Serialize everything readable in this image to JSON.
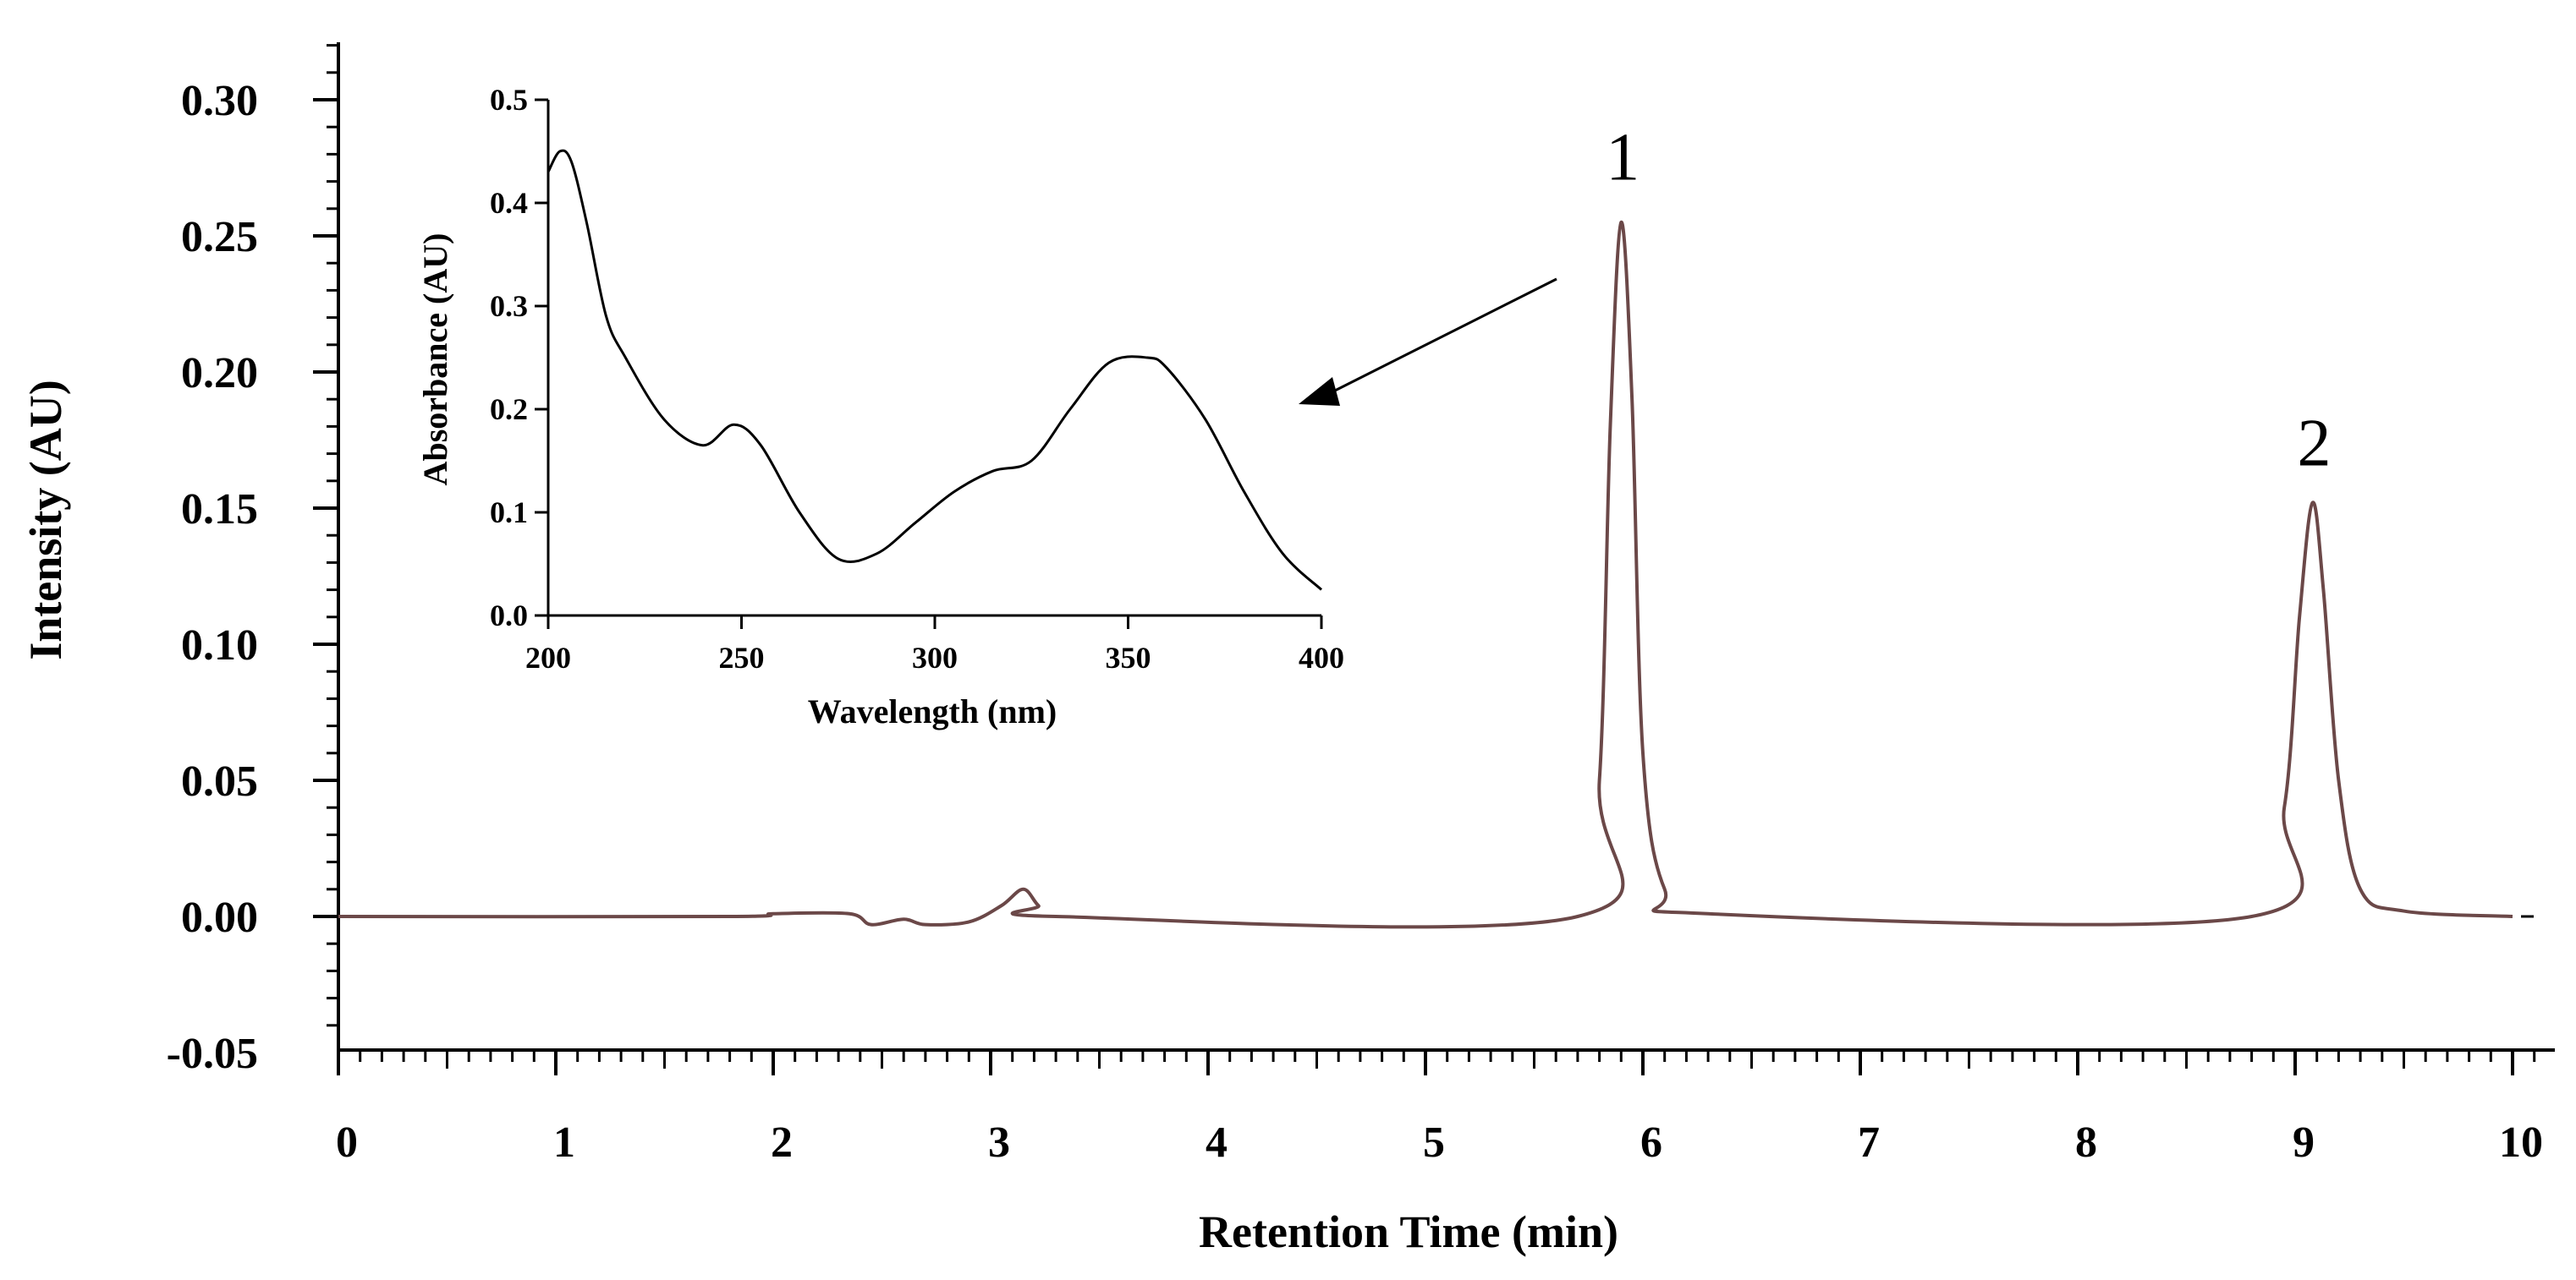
{
  "chart_data": [
    {
      "type": "line",
      "name": "chromatogram",
      "xlabel": "Retention Time (min)",
      "ylabel": "Intensity (AU)",
      "xlim": [
        0,
        10.2
      ],
      "ylim": [
        -0.05,
        0.32
      ],
      "xticks": [
        "0",
        "1",
        "2",
        "3",
        "4",
        "5",
        "6",
        "7",
        "8",
        "9",
        "10"
      ],
      "yticks": [
        "0.30",
        "0.25",
        "0.20",
        "0.15",
        "0.10",
        "0.05",
        "0.00",
        "-0.05"
      ],
      "series": [
        {
          "name": "Intensity",
          "color": "#6b4848",
          "x": [
            0,
            1.8,
            2.0,
            2.35,
            2.45,
            2.6,
            2.7,
            2.9,
            3.05,
            3.15,
            3.22,
            3.3,
            5.7,
            5.8,
            5.85,
            5.9,
            5.95,
            6.0,
            6.1,
            6.3,
            8.8,
            8.95,
            9.02,
            9.08,
            9.13,
            9.2,
            9.3,
            9.5,
            10.0
          ],
          "y": [
            0,
            0,
            0.001,
            0.001,
            -0.003,
            -0.001,
            -0.003,
            -0.002,
            0.004,
            0.01,
            0.004,
            0,
            0,
            0.05,
            0.18,
            0.255,
            0.19,
            0.06,
            0.01,
            0.001,
            0,
            0.04,
            0.11,
            0.152,
            0.12,
            0.05,
            0.01,
            0.002,
            0
          ]
        }
      ],
      "annotations": [
        {
          "text": "1",
          "x": 5.9,
          "y": 0.28
        },
        {
          "text": "2",
          "x": 9.08,
          "y": 0.175
        }
      ]
    },
    {
      "type": "line",
      "name": "inset-uv-spectrum",
      "xlabel": "Wavelength (nm)",
      "ylabel": "Absorbance (AU)",
      "xlim": [
        200,
        400
      ],
      "ylim": [
        0,
        0.5
      ],
      "xticks": [
        "200",
        "250",
        "300",
        "350",
        "400"
      ],
      "yticks": [
        "0.5",
        "0.4",
        "0.3",
        "0.2",
        "0.1",
        "0.0"
      ],
      "series": [
        {
          "name": "Absorbance",
          "color": "#000000",
          "x": [
            200,
            203,
            206,
            210,
            215,
            220,
            230,
            240,
            248,
            255,
            265,
            275,
            285,
            295,
            305,
            315,
            325,
            335,
            345,
            355,
            360,
            370,
            380,
            390,
            400
          ],
          "y": [
            0.43,
            0.45,
            0.44,
            0.38,
            0.29,
            0.25,
            0.19,
            0.165,
            0.185,
            0.165,
            0.1,
            0.055,
            0.06,
            0.09,
            0.12,
            0.14,
            0.15,
            0.2,
            0.245,
            0.25,
            0.24,
            0.19,
            0.12,
            0.06,
            0.025
          ]
        }
      ]
    }
  ]
}
